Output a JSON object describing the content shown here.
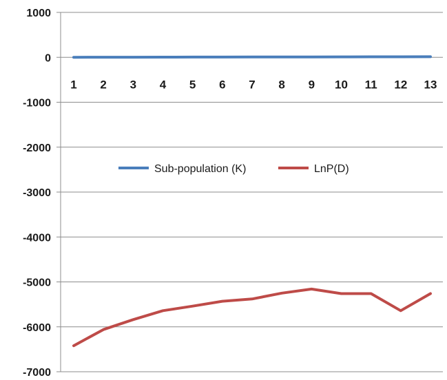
{
  "chart_data": {
    "type": "line",
    "title": "",
    "xlabel": "",
    "ylabel": "",
    "x": [
      1,
      2,
      3,
      4,
      5,
      6,
      7,
      8,
      9,
      10,
      11,
      12,
      13
    ],
    "x_tick_labels": [
      "1",
      "2",
      "3",
      "4",
      "5",
      "6",
      "7",
      "8",
      "9",
      "10",
      "11",
      "12",
      "13"
    ],
    "ylim": [
      -7000,
      1000
    ],
    "y_ticks": [
      1000,
      0,
      -1000,
      -2000,
      -3000,
      -4000,
      -5000,
      -6000,
      -7000
    ],
    "y_tick_labels": [
      "1000",
      "0",
      "-1000",
      "-2000",
      "-3000",
      "-4000",
      "-5000",
      "-6000",
      "-7000"
    ],
    "grid": true,
    "legend_position": "center",
    "series": [
      {
        "name": "Sub-population (K)",
        "color": "#4a7ebb",
        "values": [
          1,
          2,
          3,
          4,
          5,
          6,
          7,
          8,
          9,
          10,
          11,
          12,
          13
        ]
      },
      {
        "name": "LnP(D)",
        "color": "#be4b48",
        "values": [
          -6420,
          -6060,
          -5840,
          -5640,
          -5540,
          -5430,
          -5380,
          -5250,
          -5160,
          -5260,
          -5260,
          -5640,
          -5260
        ]
      }
    ]
  }
}
